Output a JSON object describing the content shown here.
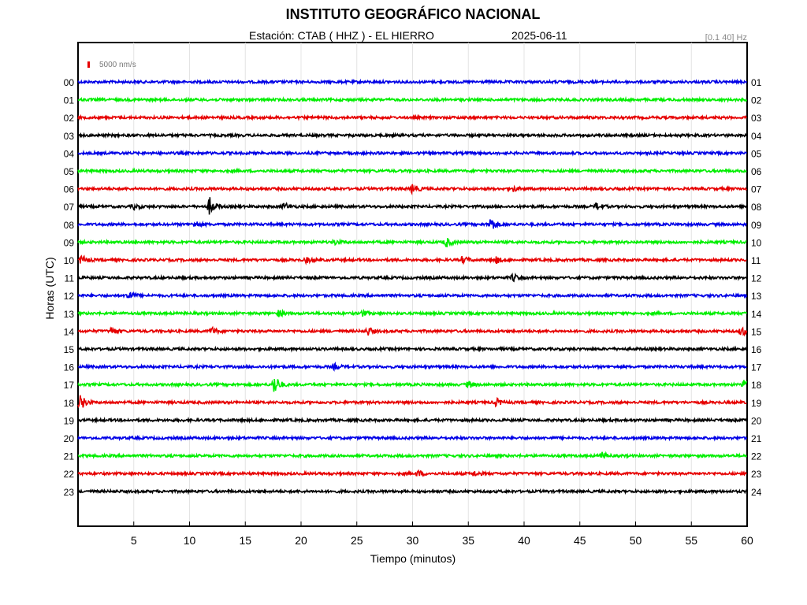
{
  "header": {
    "title": "INSTITUTO GEOGRÁFICO NACIONAL",
    "station": "Estación:  CTAB ( HHZ ) - EL HIERRO",
    "date": "2025-06-11",
    "freq_band": "[0.1 40] Hz"
  },
  "chart_data": {
    "type": "line",
    "title": "INSTITUTO GEOGRÁFICO NACIONAL",
    "xlabel": "Tiempo (minutos)",
    "ylabel": "Horas (UTC)",
    "xlim": [
      0,
      60
    ],
    "x_ticks": [
      5,
      10,
      15,
      20,
      25,
      30,
      35,
      40,
      45,
      50,
      55,
      60
    ],
    "scale_label": "5000 nm/s",
    "grid": true,
    "left_labels": [
      "00",
      "01",
      "02",
      "03",
      "04",
      "05",
      "06",
      "07",
      "08",
      "09",
      "10",
      "11",
      "12",
      "13",
      "14",
      "15",
      "16",
      "17",
      "18",
      "19",
      "20",
      "21",
      "22",
      "23"
    ],
    "right_labels": [
      "01",
      "02",
      "03",
      "04",
      "05",
      "06",
      "07",
      "08",
      "09",
      "10",
      "11",
      "12",
      "13",
      "14",
      "15",
      "16",
      "17",
      "18",
      "19",
      "20",
      "21",
      "22",
      "23",
      "24"
    ],
    "trace_colors": [
      "#0000e6",
      "#00ee00",
      "#e60000",
      "#000000"
    ],
    "events": [
      {
        "hour": 6,
        "minute": 30.0,
        "amplitude": 1.8
      },
      {
        "hour": 6,
        "minute": 39.0,
        "amplitude": 1.0
      },
      {
        "hour": 7,
        "minute": 5.0,
        "amplitude": 1.0
      },
      {
        "hour": 7,
        "minute": 11.8,
        "amplitude": 3.6
      },
      {
        "hour": 7,
        "minute": 18.5,
        "amplitude": 1.4
      },
      {
        "hour": 7,
        "minute": 46.5,
        "amplitude": 1.4
      },
      {
        "hour": 8,
        "minute": 10.5,
        "amplitude": 1.4
      },
      {
        "hour": 8,
        "minute": 37.0,
        "amplitude": 3.0
      },
      {
        "hour": 9,
        "minute": 23.0,
        "amplitude": 1.0
      },
      {
        "hour": 9,
        "minute": 33.0,
        "amplitude": 2.0
      },
      {
        "hour": 10,
        "minute": 0.3,
        "amplitude": 1.8
      },
      {
        "hour": 10,
        "minute": 20.5,
        "amplitude": 1.0
      },
      {
        "hour": 10,
        "minute": 34.5,
        "amplitude": 1.4
      },
      {
        "hour": 10,
        "minute": 37.5,
        "amplitude": 1.2
      },
      {
        "hour": 11,
        "minute": 39.0,
        "amplitude": 1.4
      },
      {
        "hour": 12,
        "minute": 4.5,
        "amplitude": 2.2
      },
      {
        "hour": 13,
        "minute": 18.0,
        "amplitude": 1.2
      },
      {
        "hour": 13,
        "minute": 25.5,
        "amplitude": 1.0
      },
      {
        "hour": 14,
        "minute": 3.0,
        "amplitude": 1.4
      },
      {
        "hour": 14,
        "minute": 12.0,
        "amplitude": 1.4
      },
      {
        "hour": 14,
        "minute": 26.0,
        "amplitude": 1.6
      },
      {
        "hour": 14,
        "minute": 59.5,
        "amplitude": 2.0
      },
      {
        "hour": 16,
        "minute": 23.0,
        "amplitude": 1.0
      },
      {
        "hour": 17,
        "minute": 17.6,
        "amplitude": 4.2
      },
      {
        "hour": 17,
        "minute": 35.0,
        "amplitude": 1.4
      },
      {
        "hour": 17,
        "minute": 59.7,
        "amplitude": 1.8
      },
      {
        "hour": 18,
        "minute": 0.2,
        "amplitude": 3.4
      },
      {
        "hour": 18,
        "minute": 37.5,
        "amplitude": 1.6
      },
      {
        "hour": 21,
        "minute": 47.0,
        "amplitude": 1.4
      },
      {
        "hour": 22,
        "minute": 30.5,
        "amplitude": 1.2
      },
      {
        "hour": 22,
        "minute": 35.5,
        "amplitude": 1.0
      }
    ]
  }
}
